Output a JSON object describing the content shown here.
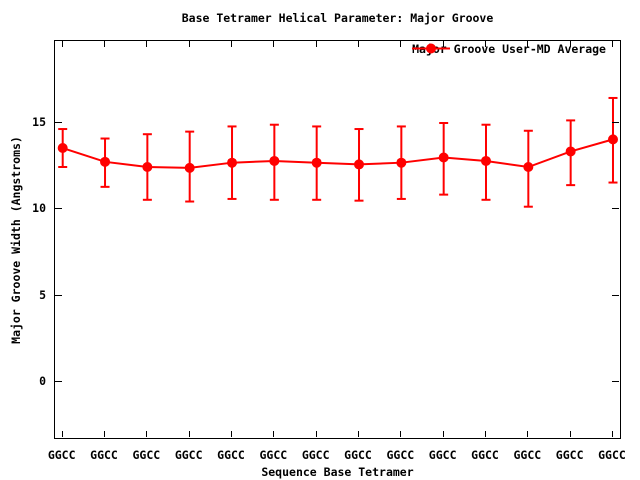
{
  "window": {
    "background": "#ffffff",
    "text_color": "#000000",
    "accent_color": "#ff0000"
  },
  "chart_data": {
    "type": "line",
    "title": "Base Tetramer Helical Parameter: Major Groove",
    "xlabel": "Sequence Base Tetramer",
    "ylabel": "Major Groove Width (Angstroms)",
    "categories": [
      "GGCC",
      "GGCC",
      "GGCC",
      "GGCC",
      "GGCC",
      "GGCC",
      "GGCC",
      "GGCC",
      "GGCC",
      "GGCC",
      "GGCC",
      "GGCC",
      "GGCC",
      "GGCC"
    ],
    "yticks": [
      0,
      5,
      10,
      15
    ],
    "ylim": [
      -3.25,
      19.75
    ],
    "grid": false,
    "legend_position": "top-right-inside",
    "series": [
      {
        "name": "Major Groove User-MD Average",
        "color": "#ff0000",
        "marker": "filled-circle",
        "style": "line-with-errorbars",
        "values": [
          13.55,
          12.75,
          12.45,
          12.4,
          12.7,
          12.8,
          12.7,
          12.6,
          12.7,
          13.0,
          12.8,
          12.45,
          13.35,
          14.05
        ],
        "err_low": [
          12.45,
          11.3,
          10.55,
          10.45,
          10.6,
          10.55,
          10.55,
          10.5,
          10.6,
          10.85,
          10.55,
          10.15,
          11.4,
          11.55
        ],
        "err_high": [
          14.65,
          14.1,
          14.35,
          14.5,
          14.8,
          14.9,
          14.8,
          14.65,
          14.8,
          15.0,
          14.9,
          14.55,
          15.15,
          16.45
        ]
      }
    ]
  }
}
